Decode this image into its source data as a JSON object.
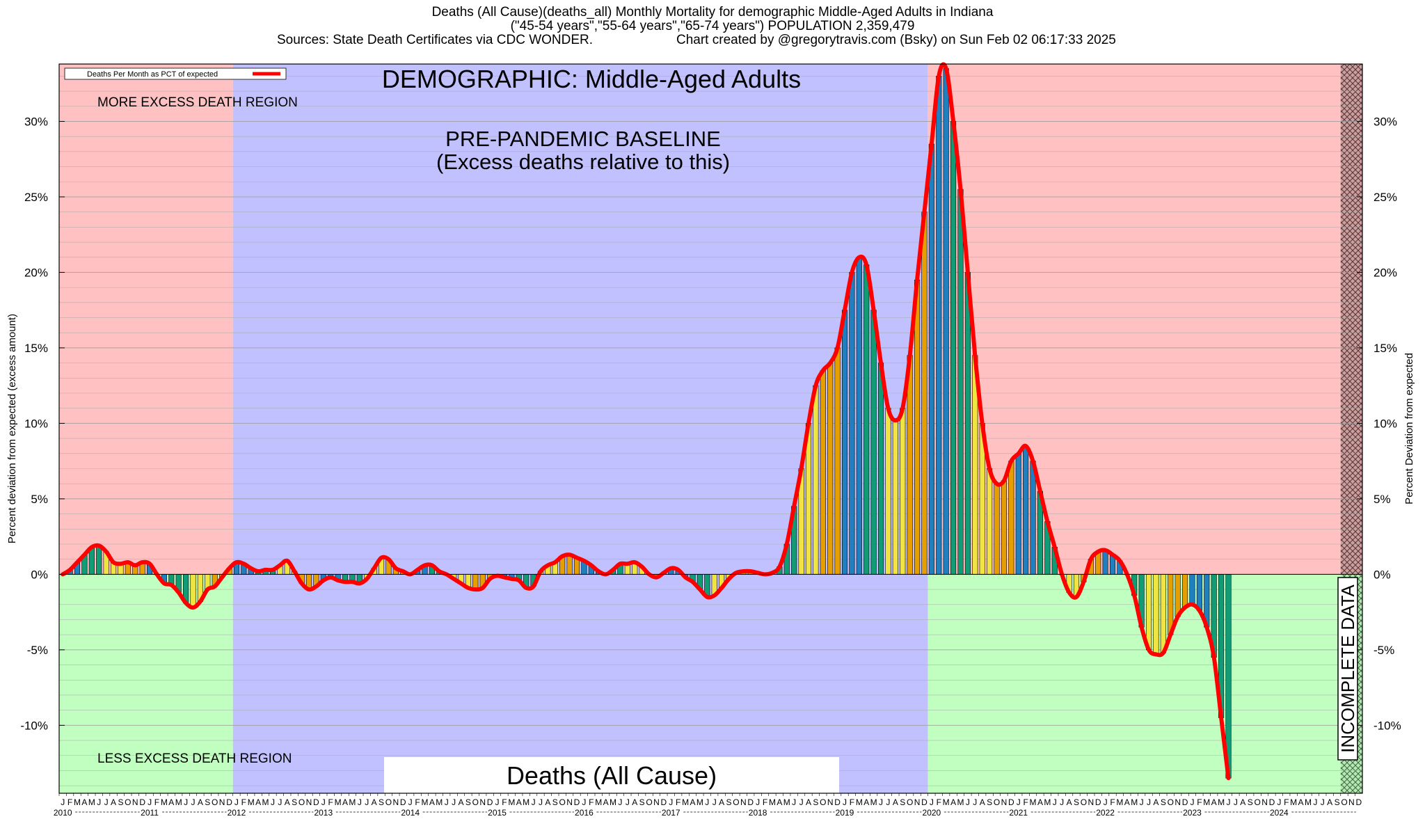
{
  "header": {
    "line1": "Deaths (All Cause)(deaths_all) Monthly Mortality for demographic Middle-Aged Adults in Indiana",
    "line2": "(\"45-54 years\",\"55-64 years\",\"65-74 years\") POPULATION 2,359,479",
    "line3a": "Sources: State Death Certificates via CDC WONDER.",
    "line3b": "Chart created by @gregorytravis.com (Bsky) on Sun Feb 02 06:17:33 2025"
  },
  "chart_data": {
    "type": "bar",
    "title": "DEMOGRAPHIC: Middle-Aged Adults",
    "legend": "Deaths Per Month as PCT of expected",
    "legend_position": "top-left",
    "ylabel_left": "Percent deviation from expected (excess amount)",
    "ylabel_right": "Percent Deviation from expected",
    "ylim": [
      -14.5,
      33.8
    ],
    "yticks": [
      -10,
      -5,
      0,
      5,
      10,
      15,
      20,
      25,
      30
    ],
    "ytick_labels": [
      "-10%",
      "-5%",
      "0%",
      "5%",
      "10%",
      "15%",
      "20%",
      "25%",
      "30%"
    ],
    "grid": true,
    "x_start": "2010-01",
    "month_letters": [
      "J",
      "F",
      "M",
      "A",
      "M",
      "J",
      "J",
      "A",
      "S",
      "O",
      "N",
      "D"
    ],
    "years": [
      "2010",
      "2011",
      "2012",
      "2013",
      "2014",
      "2015",
      "2016",
      "2017",
      "2018",
      "2019",
      "2020",
      "2021",
      "2022",
      "2023",
      "2024"
    ],
    "annotations": {
      "more_region": "MORE EXCESS DEATH REGION",
      "less_region": "LESS EXCESS DEATH REGION",
      "baseline_line1": "PRE-PANDEMIC BASELINE",
      "baseline_line2": "(Excess deaths relative to this)",
      "bottom_label": "Deaths (All Cause)",
      "incomplete": "INCOMPLETE DATA"
    },
    "baseline_period": [
      "2012-01",
      "2019-12"
    ],
    "incomplete_period": [
      "2024-10",
      "2024-12"
    ],
    "colors": {
      "excess_bg": "#ffc1c1",
      "deficit_bg": "#c1ffc1",
      "baseline_bg": "#c1c1ff",
      "line": "#ff0000",
      "bars_by_quarter": [
        "#1f7fbf",
        "#129c76",
        "#f0e442",
        "#e59f00"
      ]
    },
    "values": [
      0.0,
      0.3,
      0.8,
      1.3,
      1.8,
      1.9,
      1.5,
      0.8,
      0.7,
      0.8,
      0.6,
      0.8,
      0.7,
      0.0,
      -0.6,
      -0.7,
      -1.2,
      -1.9,
      -2.2,
      -1.8,
      -1.0,
      -0.8,
      -0.2,
      0.4,
      0.8,
      0.7,
      0.4,
      0.2,
      0.3,
      0.3,
      0.6,
      0.9,
      0.2,
      -0.6,
      -1.0,
      -0.8,
      -0.4,
      -0.2,
      -0.4,
      -0.5,
      -0.5,
      -0.6,
      -0.3,
      0.4,
      1.1,
      1.0,
      0.4,
      0.2,
      0.0,
      0.3,
      0.6,
      0.6,
      0.2,
      0.0,
      -0.3,
      -0.6,
      -0.9,
      -1.0,
      -0.9,
      -0.3,
      -0.1,
      -0.2,
      -0.3,
      -0.4,
      -0.9,
      -0.8,
      0.2,
      0.6,
      0.8,
      1.2,
      1.3,
      1.1,
      0.9,
      0.6,
      0.2,
      0.0,
      0.3,
      0.7,
      0.7,
      0.8,
      0.5,
      0.0,
      -0.2,
      0.1,
      0.4,
      0.3,
      -0.2,
      -0.5,
      -1.0,
      -1.5,
      -1.4,
      -0.9,
      -0.3,
      0.1,
      0.2,
      0.2,
      0.1,
      0.0,
      0.1,
      0.5,
      2.0,
      4.5,
      7.0,
      10.0,
      12.5,
      13.5,
      14.0,
      15.0,
      17.5,
      20.0,
      21.0,
      20.5,
      17.5,
      14.0,
      11.0,
      10.2,
      11.0,
      14.5,
      19.5,
      24.0,
      28.5,
      33.0,
      33.5,
      30.0,
      25.5,
      20.0,
      14.5,
      10.0,
      7.0,
      6.0,
      6.2,
      7.5,
      8.0,
      8.5,
      7.5,
      5.5,
      3.5,
      1.8,
      0.0,
      -1.2,
      -1.5,
      -0.5,
      1.0,
      1.5,
      1.6,
      1.3,
      0.9,
      0.0,
      -1.4,
      -3.5,
      -5.0,
      -5.3,
      -5.2,
      -4.0,
      -2.8,
      -2.2,
      -2.0,
      -2.4,
      -3.5,
      -5.5,
      -9.5,
      -13.5
    ]
  }
}
